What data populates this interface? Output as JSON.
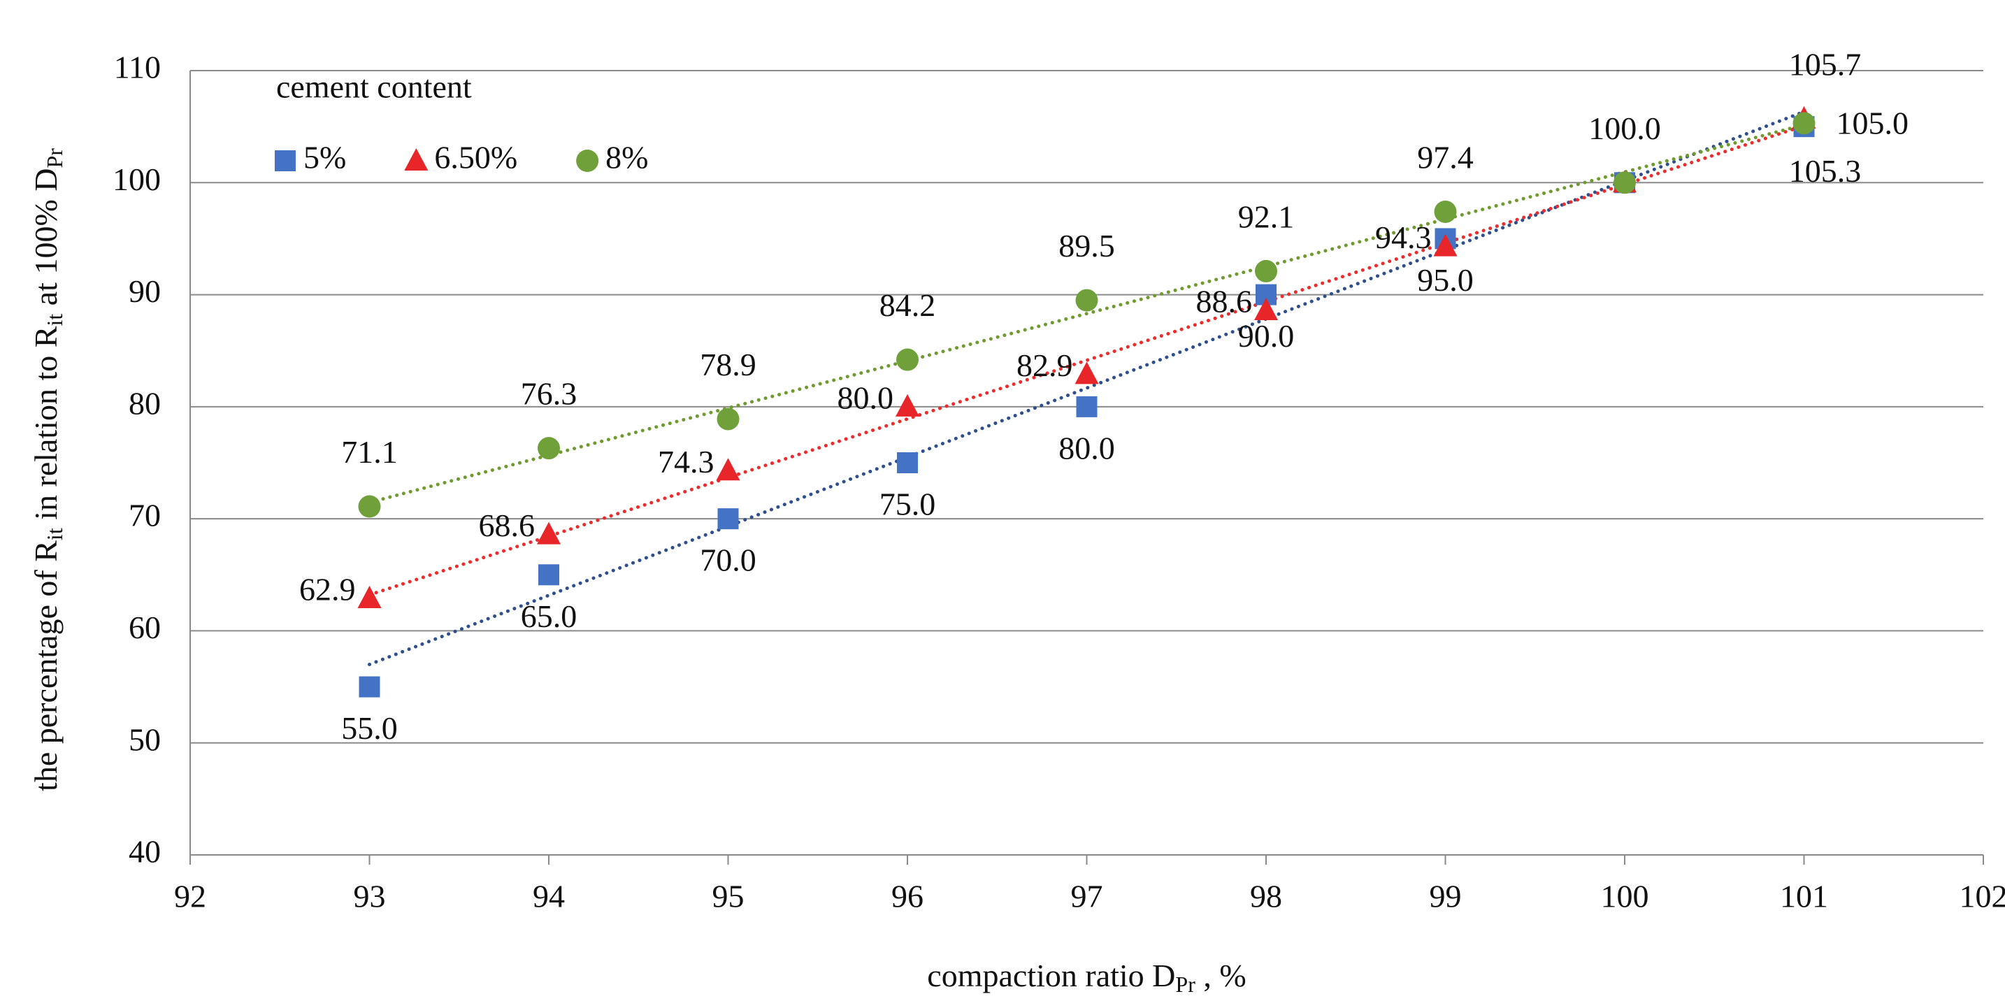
{
  "chart_data": {
    "type": "scatter",
    "xlabel": [
      "compaction ratio D",
      "Pr",
      " , %"
    ],
    "ylabel": [
      "the percentage of R",
      "it",
      " in relation to R",
      "it",
      " at 100% D",
      "Pr"
    ],
    "legend_title": "cement content",
    "legend": "upper left",
    "grid": true,
    "x": [
      93,
      94,
      95,
      96,
      97,
      98,
      99,
      100,
      101
    ],
    "series": [
      {
        "name": "5%",
        "color": "#4472c4",
        "marker": "square",
        "trendline": "linear",
        "trend_color": "#2e4f8e",
        "values": [
          55.0,
          65.0,
          70.0,
          75.0,
          80.0,
          90.0,
          95.0,
          100.0,
          105.0
        ],
        "value_labels": [
          "55.0",
          "65.0",
          "70.0",
          "75.0",
          "80.0",
          "90.0",
          "95.0",
          null,
          "105.0"
        ]
      },
      {
        "name": "6.50%",
        "color": "#e8262a",
        "marker": "triangle",
        "trendline": "linear",
        "trend_color": "#ee2a2a",
        "values": [
          62.9,
          68.6,
          74.3,
          80.0,
          82.9,
          88.6,
          94.3,
          100.0,
          105.7
        ],
        "value_labels": [
          "62.9",
          "68.6",
          "74.3",
          "80.0",
          "82.9",
          "88.6",
          "94.3",
          null,
          "105.7"
        ]
      },
      {
        "name": "8%",
        "color": "#70a03a",
        "marker": "circle",
        "trendline": "linear",
        "trend_color": "#6f9a2e",
        "values": [
          71.1,
          76.3,
          78.9,
          84.2,
          89.5,
          92.1,
          97.4,
          100.0,
          105.3
        ],
        "value_labels": [
          "71.1",
          "76.3",
          "78.9",
          "84.2",
          "89.5",
          "92.1",
          "97.4",
          "100.0",
          "105.3"
        ]
      }
    ],
    "xlim": [
      92,
      102
    ],
    "xticks": [
      92,
      93,
      94,
      95,
      96,
      97,
      98,
      99,
      100,
      101,
      102
    ],
    "ylim": [
      40,
      110
    ],
    "yticks": [
      40,
      50,
      60,
      70,
      80,
      90,
      100,
      110
    ]
  }
}
